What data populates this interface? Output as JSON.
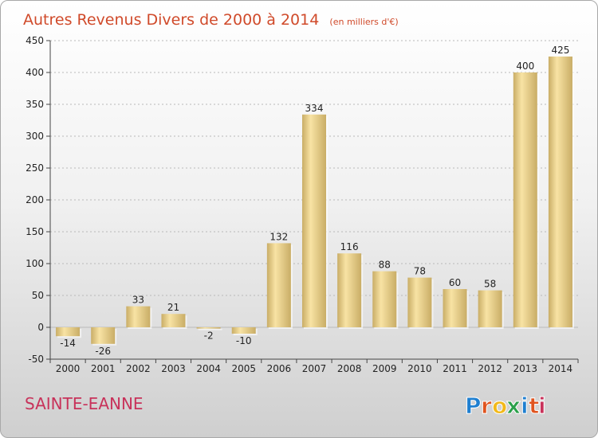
{
  "title": "Autres Revenus Divers de 2000 à 2014",
  "unit": "(en milliers d'€)",
  "place": "SAINTE-EANNE",
  "logo": {
    "text": "Proxiti",
    "letters": [
      "P",
      "r",
      "o",
      "x",
      "i",
      "t",
      "i"
    ],
    "colors": [
      "#1f7fd0",
      "#e0541f",
      "#f2b91a",
      "#2aa04a",
      "#1f7fd0",
      "#e0541f",
      "#c8325a"
    ]
  },
  "colors": {
    "bar_light": "#f8e3a4",
    "bar_dark": "#c9ad66",
    "title": "#d04a2a",
    "place": "#c8325a"
  },
  "chart_data": {
    "type": "bar",
    "categories": [
      "2000",
      "2001",
      "2002",
      "2003",
      "2004",
      "2005",
      "2006",
      "2007",
      "2008",
      "2009",
      "2010",
      "2011",
      "2012",
      "2013",
      "2014"
    ],
    "values": [
      -14,
      -26,
      33,
      21,
      -2,
      -10,
      132,
      334,
      116,
      88,
      78,
      60,
      58,
      400,
      425
    ],
    "title": "Autres Revenus Divers de 2000 à 2014",
    "xlabel": "",
    "ylabel": "",
    "ylim": [
      -50,
      450
    ],
    "yticks": [
      -50,
      0,
      50,
      100,
      150,
      200,
      250,
      300,
      350,
      400,
      450
    ],
    "grid": true,
    "legend": "none"
  }
}
